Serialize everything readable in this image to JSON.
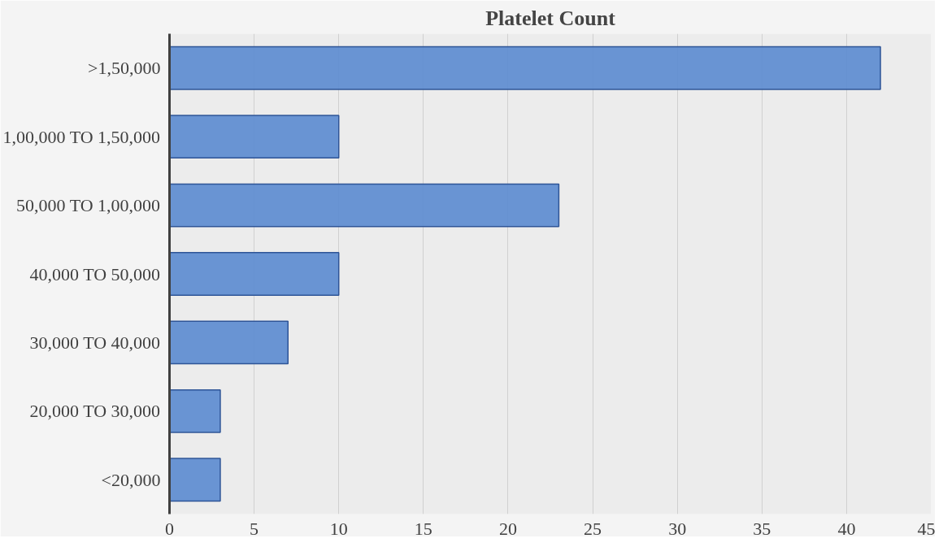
{
  "chart_data": {
    "type": "bar",
    "orientation": "horizontal",
    "title": "Platelet Count",
    "categories": [
      ">1,50,000",
      "1,00,000 TO 1,50,000",
      "50,000 TO 1,00,000",
      "40,000 TO 50,000",
      "30,000 TO 40,000",
      "20,000 TO 30,000",
      "<20,000"
    ],
    "values": [
      42,
      10,
      23,
      10,
      7,
      3,
      3
    ],
    "color": "#5b8bd0",
    "xlim": [
      0,
      45
    ],
    "xticks": [
      0,
      5,
      10,
      15,
      20,
      25,
      30,
      35,
      40,
      45
    ],
    "grid": "x"
  }
}
